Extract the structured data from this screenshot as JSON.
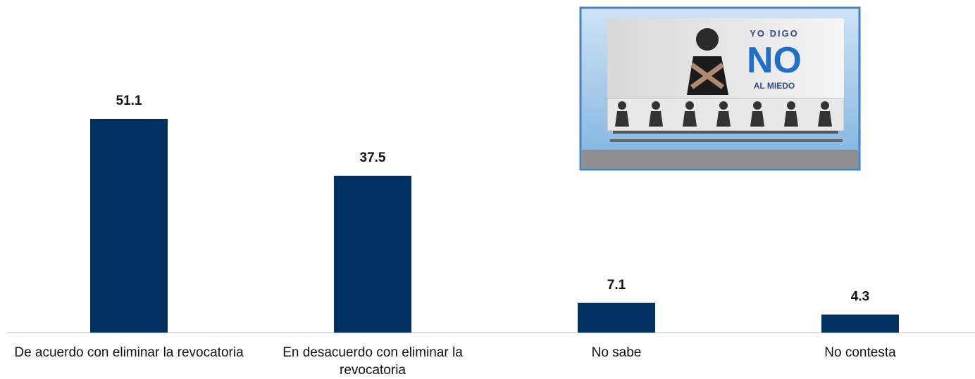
{
  "chart_data": {
    "type": "bar",
    "categories": [
      "De acuerdo con eliminar la revocatoria",
      "En desacuerdo con eliminar la revocatoria",
      "No sabe",
      "No contesta"
    ],
    "values": [
      51.1,
      37.5,
      7.1,
      4.3
    ],
    "color": "#00305f"
  },
  "inset": {
    "line1": "YO DIGO",
    "line2": "NO",
    "line3": "AL MIEDO"
  }
}
